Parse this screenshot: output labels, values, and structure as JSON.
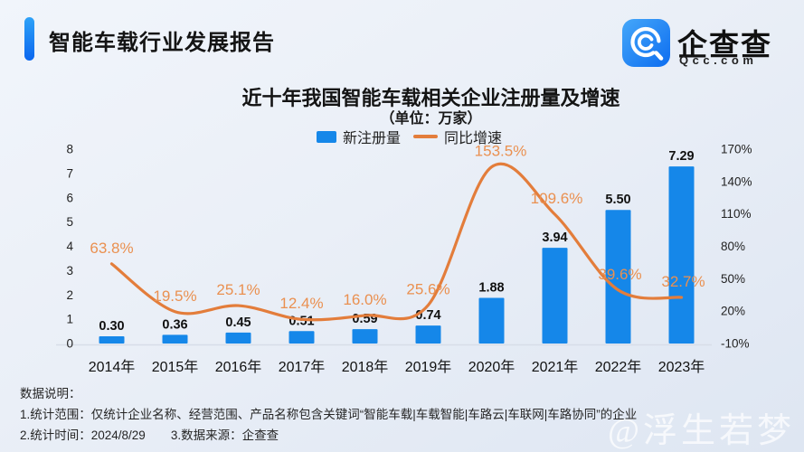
{
  "header": {
    "title": "智能车载行业发展报告"
  },
  "logo": {
    "name": "企查查",
    "domain": "Qcc.com"
  },
  "chart": {
    "title": "近十年我国智能车载相关企业注册量及增速",
    "subtitle": "（单位：万家）",
    "legend": {
      "bars": "新注册量",
      "line": "同比增速"
    }
  },
  "chart_data": {
    "type": "bar+line combo",
    "title": "近十年我国智能车载相关企业注册量及增速",
    "subtitle_unit": "（单位：万家）",
    "categories": [
      "2014年",
      "2015年",
      "2016年",
      "2017年",
      "2018年",
      "2019年",
      "2020年",
      "2021年",
      "2022年",
      "2023年"
    ],
    "series": [
      {
        "name": "新注册量",
        "type": "bar",
        "axis": "left",
        "color": "#1587e9",
        "values": [
          0.3,
          0.36,
          0.45,
          0.51,
          0.59,
          0.74,
          1.88,
          3.94,
          5.5,
          7.29
        ],
        "labels": [
          "0.30",
          "0.36",
          "0.45",
          "0.51",
          "0.59",
          "0.74",
          "1.88",
          "3.94",
          "5.50",
          "7.29"
        ],
        "label_color": "#111111"
      },
      {
        "name": "同比增速",
        "type": "line",
        "axis": "right",
        "color": "#e37d3b",
        "values": [
          63.8,
          19.5,
          25.1,
          12.4,
          16.0,
          25.6,
          153.5,
          109.6,
          39.6,
          32.7
        ],
        "labels": [
          "63.8%",
          "19.5%",
          "25.1%",
          "12.4%",
          "16.0%",
          "25.6%",
          "153.5%",
          "109.6%",
          "39.6%",
          "32.7%"
        ],
        "label_dx": [
          0,
          0,
          0,
          0,
          0,
          0,
          10,
          2,
          2,
          2
        ],
        "label_color": "#ea9050"
      }
    ],
    "left_axis": {
      "min": 0,
      "max": 8,
      "tick_values": [
        0,
        1,
        2,
        3,
        4,
        5,
        6,
        7,
        8
      ],
      "tick_labels": [
        "0",
        "1",
        "2",
        "3",
        "4",
        "5",
        "6",
        "7",
        "8"
      ]
    },
    "right_axis": {
      "min": -10,
      "max": 170,
      "tick_values": [
        -10,
        20,
        50,
        80,
        110,
        140,
        170
      ],
      "tick_labels": [
        "-10%",
        "20%",
        "50%",
        "80%",
        "110%",
        "140%",
        "170%"
      ]
    },
    "grid": "off",
    "legend_position": "top-center",
    "axis_line_color": "#d7dde8",
    "tick_color": "#222222",
    "xlabel_color": "#111111"
  },
  "footer": {
    "heading": "数据说明：",
    "line1": "1.统计范围：仅统计企业名称、经营范围、产品名称包含关键词“智能车载|车载智能|车路云|车联网|车路协同”的企业",
    "line2a": "2.统计时间：2024/8/29",
    "line2b": "3.数据来源：企查查"
  },
  "watermark": "@浮生若梦",
  "colors": {
    "bar_blue": "#1587e9",
    "line_orange": "#e37d3b",
    "label_orange": "#ea9050",
    "accent_blue": "#0b66ee",
    "logo_blue": "#0d6df0"
  }
}
